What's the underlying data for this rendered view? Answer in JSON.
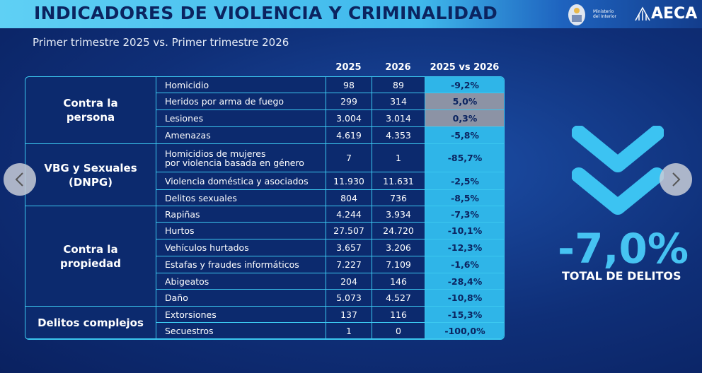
{
  "header": {
    "title": "INDICADORES DE VIOLENCIA Y CRIMINALIDAD",
    "subtitle": "Primer trimestre 2025 vs. Primer trimestre 2026",
    "ministry": "Ministerio\ndel Interior",
    "brand": "AECA"
  },
  "table": {
    "columns": [
      "2025",
      "2026",
      "2025 vs 2026"
    ],
    "groups": [
      {
        "label": "Contra la\npersona",
        "rows": [
          {
            "delito": "Homicidio",
            "y2025": "98",
            "y2026": "89",
            "variacion": "-9,2%",
            "highlight": false
          },
          {
            "delito": "Heridos por arma de fuego",
            "y2025": "299",
            "y2026": "314",
            "variacion": "5,0%",
            "highlight": true
          },
          {
            "delito": "Lesiones",
            "y2025": "3.004",
            "y2026": "3.014",
            "variacion": "0,3%",
            "highlight": true
          },
          {
            "delito": "Amenazas",
            "y2025": "4.619",
            "y2026": "4.353",
            "variacion": "-5,8%",
            "highlight": false
          }
        ]
      },
      {
        "label": "VBG y Sexuales\n(DNPG)",
        "rows": [
          {
            "delito": "Homicidios de mujeres\npor violencia basada en género",
            "y2025": "7",
            "y2026": "1",
            "variacion": "-85,7%",
            "highlight": false
          },
          {
            "delito": "Violencia doméstica y asociados",
            "y2025": "11.930",
            "y2026": "11.631",
            "variacion": "-2,5%",
            "highlight": false
          },
          {
            "delito": "Delitos sexuales",
            "y2025": "804",
            "y2026": "736",
            "variacion": "-8,5%",
            "highlight": false
          }
        ]
      },
      {
        "label": "Contra la\npropiedad",
        "rows": [
          {
            "delito": "Rapiñas",
            "y2025": "4.244",
            "y2026": "3.934",
            "variacion": "-7,3%",
            "highlight": false
          },
          {
            "delito": "Hurtos",
            "y2025": "27.507",
            "y2026": "24.720",
            "variacion": "-10,1%",
            "highlight": false
          },
          {
            "delito": "Vehículos hurtados",
            "y2025": "3.657",
            "y2026": "3.206",
            "variacion": "-12,3%",
            "highlight": false
          },
          {
            "delito": "Estafas y fraudes informáticos",
            "y2025": "7.227",
            "y2026": "7.109",
            "variacion": "-1,6%",
            "highlight": false
          },
          {
            "delito": "Abigeatos",
            "y2025": "204",
            "y2026": "146",
            "variacion": "-28,4%",
            "highlight": false
          },
          {
            "delito": "Daño",
            "y2025": "5.073",
            "y2026": "4.527",
            "variacion": "-10,8%",
            "highlight": false
          }
        ]
      },
      {
        "label": "Delitos complejos",
        "rows": [
          {
            "delito": "Extorsiones",
            "y2025": "137",
            "y2026": "116",
            "variacion": "-15,3%",
            "highlight": false
          },
          {
            "delito": "Secuestros",
            "y2025": "1",
            "y2026": "0",
            "variacion": "-100,0%",
            "highlight": false
          }
        ]
      }
    ]
  },
  "summary": {
    "value": "-7,0%",
    "label": "TOTAL DE DELITOS"
  }
}
